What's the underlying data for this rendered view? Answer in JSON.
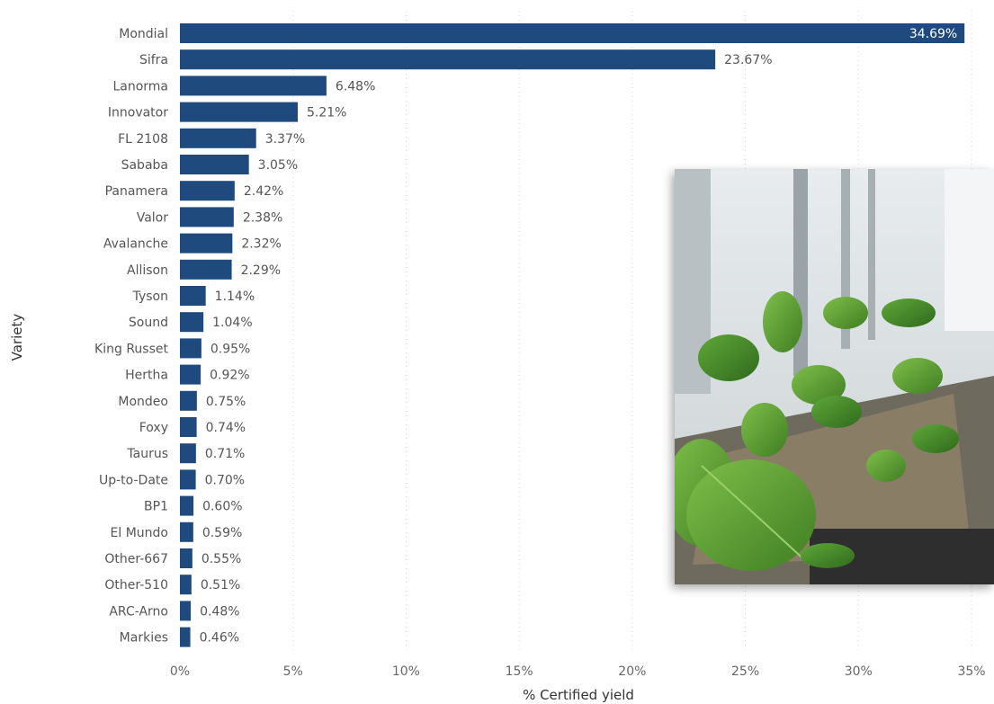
{
  "chart_data": {
    "type": "bar",
    "orientation": "horizontal",
    "categories": [
      "Mondial",
      "Sifra",
      "Lanorma",
      "Innovator",
      "FL 2108",
      "Sababa",
      "Panamera",
      "Valor",
      "Avalanche",
      "Allison",
      "Tyson",
      "Sound",
      "King Russet",
      "Hertha",
      "Mondeo",
      "Foxy",
      "Taurus",
      "Up-to-Date",
      "BP1",
      "El Mundo",
      "Other-667",
      "Other-510",
      "ARC-Arno",
      "Markies"
    ],
    "values": [
      34.69,
      23.67,
      6.48,
      5.21,
      3.37,
      3.05,
      2.42,
      2.38,
      2.32,
      2.29,
      1.14,
      1.04,
      0.95,
      0.92,
      0.75,
      0.74,
      0.71,
      0.7,
      0.6,
      0.59,
      0.55,
      0.51,
      0.48,
      0.46
    ],
    "value_labels": [
      "34.69%",
      "23.67%",
      "6.48%",
      "5.21%",
      "3.37%",
      "3.05%",
      "2.42%",
      "2.38%",
      "2.32%",
      "2.29%",
      "1.14%",
      "1.04%",
      "0.95%",
      "0.92%",
      "0.75%",
      "0.74%",
      "0.71%",
      "0.70%",
      "0.60%",
      "0.59%",
      "0.55%",
      "0.51%",
      "0.48%",
      "0.46%"
    ],
    "xlabel": "% Certified yield",
    "ylabel": "Variety",
    "xlim": [
      0,
      35
    ],
    "xticks": [
      0,
      5,
      10,
      15,
      20,
      25,
      30,
      35
    ],
    "xtick_labels": [
      "0%",
      "5%",
      "10%",
      "15%",
      "20%",
      "25%",
      "30%",
      "35%"
    ],
    "bar_color": "#1f4a7e",
    "grid": true
  },
  "photo": {
    "description": "greenhouse-seedlings-photo"
  }
}
